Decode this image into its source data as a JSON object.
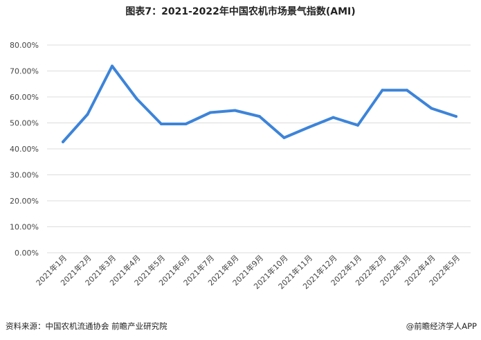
{
  "chart_data": {
    "type": "line",
    "title": "图表7：2021-2022年中国农机市场景气指数(AMI)",
    "xlabel": "",
    "ylabel": "",
    "categories": [
      "2021年1月",
      "2021年2月",
      "2021年3月",
      "2021年4月",
      "2021年5月",
      "2021年6月",
      "2021年7月",
      "2021年8月",
      "2021年9月",
      "2021年10月",
      "2021年11月",
      "2021年12月",
      "2022年1月",
      "2022年2月",
      "2022年3月",
      "2022年4月",
      "2022年5月"
    ],
    "series": [
      {
        "values": [
          42.7,
          53.3,
          71.9,
          59.3,
          49.6,
          49.6,
          54.0,
          54.8,
          52.5,
          44.3,
          48.3,
          52.1,
          49.1,
          62.6,
          62.6,
          55.6,
          52.5
        ],
        "color": "#3d84d9"
      }
    ],
    "ylim": [
      0,
      80
    ],
    "yticks": [
      "0.00%",
      "10.00%",
      "20.00%",
      "30.00%",
      "40.00%",
      "50.00%",
      "60.00%",
      "70.00%",
      "80.00%"
    ],
    "grid": true,
    "grid_color": "#dcdcdc",
    "legend": "none"
  },
  "footer": {
    "source": "资料来源：中国农机流通协会 前瞻产业研究院",
    "brand": "@前瞻经济学人APP"
  }
}
